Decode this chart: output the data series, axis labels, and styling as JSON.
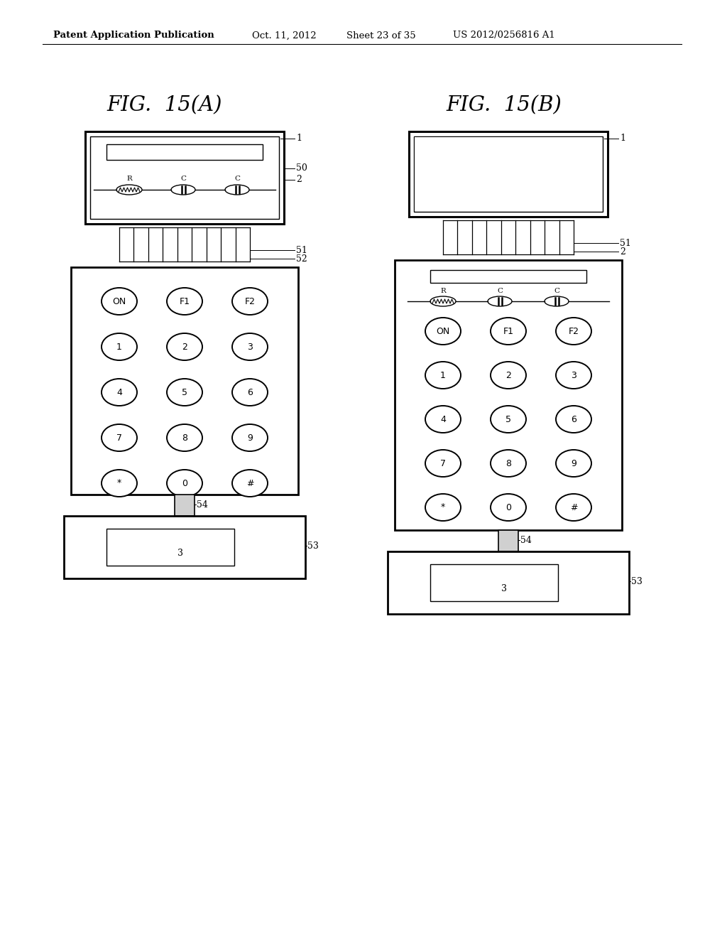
{
  "bg_color": "#ffffff",
  "header_text": "Patent Application Publication",
  "header_date": "Oct. 11, 2012",
  "header_sheet": "Sheet 23 of 35",
  "header_patent": "US 2012/0256816 A1",
  "fig_a_title": "FIG.  15(A)",
  "fig_b_title": "FIG.  15(B)",
  "keypad_rows": [
    [
      "ON",
      "F1",
      "F2"
    ],
    [
      "1",
      "2",
      "3"
    ],
    [
      "4",
      "5",
      "6"
    ],
    [
      "7",
      "8",
      "9"
    ],
    [
      "*",
      "0",
      "#"
    ]
  ]
}
